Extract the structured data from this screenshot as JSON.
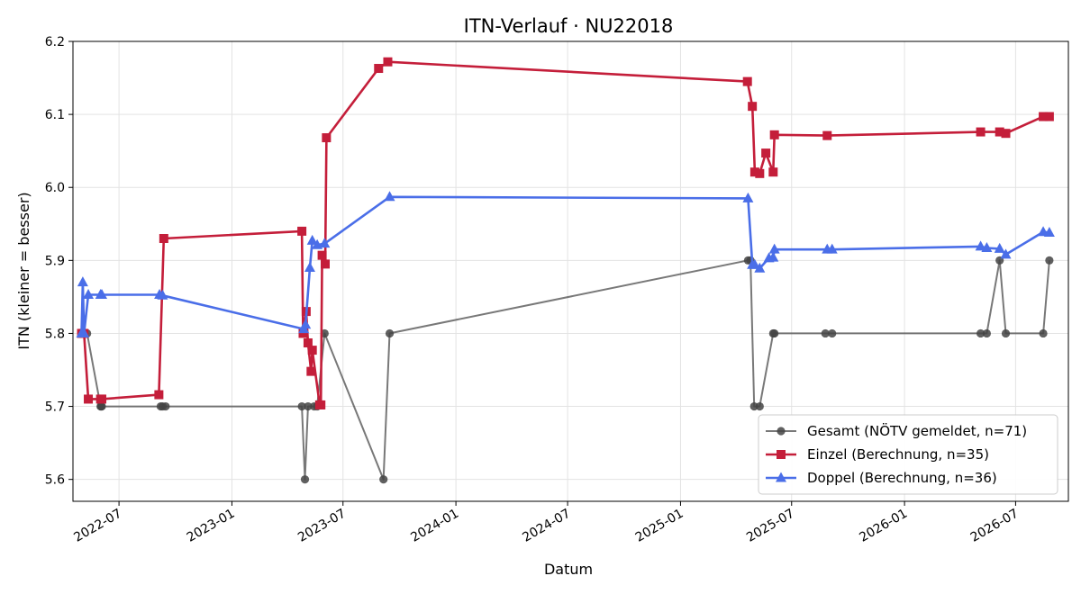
{
  "chart_data": {
    "type": "line",
    "title": "ITN-Verlauf · NU22018",
    "xlabel": "Datum",
    "ylabel": "ITN  (kleiner = besser)",
    "ylim": [
      5.57,
      6.2
    ],
    "xlim": [
      "2022-04-17",
      "2026-09-25"
    ],
    "y_ticks": [
      "5.6",
      "5.7",
      "5.8",
      "5.9",
      "6.0",
      "6.1",
      "6.2"
    ],
    "x_ticks": [
      "2022-07",
      "2023-01",
      "2023-07",
      "2024-01",
      "2024-07",
      "2025-01",
      "2025-07",
      "2026-01",
      "2026-07"
    ],
    "grid": true,
    "legend_position": "bottom-right",
    "series": [
      {
        "name": "Gesamt (NÖTV gemeldet, n=71)",
        "color": "#444444",
        "marker": "circle",
        "points": [
          [
            "2022-05-01",
            5.8
          ],
          [
            "2022-05-05",
            5.8
          ],
          [
            "2022-05-10",
            5.8
          ],
          [
            "2022-06-01",
            5.7
          ],
          [
            "2022-06-02",
            5.7
          ],
          [
            "2022-06-03",
            5.7
          ],
          [
            "2022-09-07",
            5.7
          ],
          [
            "2022-09-10",
            5.7
          ],
          [
            "2022-09-15",
            5.7
          ],
          [
            "2023-04-25",
            5.7
          ],
          [
            "2023-04-30",
            5.6
          ],
          [
            "2023-05-05",
            5.7
          ],
          [
            "2023-05-15",
            5.7
          ],
          [
            "2023-05-20",
            5.7
          ],
          [
            "2023-06-01",
            5.8
          ],
          [
            "2023-09-05",
            5.6
          ],
          [
            "2023-09-15",
            5.8
          ],
          [
            "2025-04-21",
            5.9
          ],
          [
            "2025-04-25",
            5.9
          ],
          [
            "2025-05-01",
            5.7
          ],
          [
            "2025-05-10",
            5.7
          ],
          [
            "2025-06-01",
            5.8
          ],
          [
            "2025-06-03",
            5.8
          ],
          [
            "2025-08-25",
            5.8
          ],
          [
            "2025-09-05",
            5.8
          ],
          [
            "2026-05-05",
            5.8
          ],
          [
            "2026-05-15",
            5.8
          ],
          [
            "2026-06-05",
            5.9
          ],
          [
            "2026-06-15",
            5.8
          ],
          [
            "2026-08-15",
            5.8
          ],
          [
            "2026-08-25",
            5.9
          ]
        ]
      },
      {
        "name": "Einzel (Berechnung, n=35)",
        "color": "#c41e3a",
        "marker": "square",
        "points": [
          [
            "2022-05-01",
            5.8
          ],
          [
            "2022-05-05",
            5.8
          ],
          [
            "2022-05-12",
            5.71
          ],
          [
            "2022-06-01",
            5.71
          ],
          [
            "2022-06-03",
            5.71
          ],
          [
            "2022-09-04",
            5.716
          ],
          [
            "2022-09-12",
            5.93
          ],
          [
            "2023-04-25",
            5.94
          ],
          [
            "2023-04-27",
            5.8
          ],
          [
            "2023-05-02",
            5.83
          ],
          [
            "2023-05-05",
            5.787
          ],
          [
            "2023-05-10",
            5.748
          ],
          [
            "2023-05-12",
            5.777
          ],
          [
            "2023-05-24",
            5.702
          ],
          [
            "2023-05-26",
            5.702
          ],
          [
            "2023-05-28",
            5.907
          ],
          [
            "2023-06-02",
            5.895
          ],
          [
            "2023-06-04",
            6.068
          ],
          [
            "2023-08-28",
            6.163
          ],
          [
            "2023-09-12",
            6.172
          ],
          [
            "2025-04-20",
            6.145
          ],
          [
            "2025-04-28",
            6.111
          ],
          [
            "2025-05-02",
            6.021
          ],
          [
            "2025-05-10",
            6.019
          ],
          [
            "2025-05-20",
            6.047
          ],
          [
            "2025-06-01",
            6.021
          ],
          [
            "2025-06-03",
            6.072
          ],
          [
            "2025-08-28",
            6.071
          ],
          [
            "2026-05-05",
            6.076
          ],
          [
            "2026-06-05",
            6.076
          ],
          [
            "2026-06-15",
            6.074
          ],
          [
            "2026-08-15",
            6.097
          ],
          [
            "2026-08-25",
            6.097
          ]
        ]
      },
      {
        "name": "Doppel (Berechnung, n=36)",
        "color": "#4a6ee8",
        "marker": "triangle",
        "points": [
          [
            "2022-05-01",
            5.8
          ],
          [
            "2022-05-03",
            5.87
          ],
          [
            "2022-05-05",
            5.8
          ],
          [
            "2022-05-12",
            5.853
          ],
          [
            "2022-06-01",
            5.853
          ],
          [
            "2022-06-03",
            5.853
          ],
          [
            "2022-09-05",
            5.853
          ],
          [
            "2022-09-10",
            5.852
          ],
          [
            "2023-04-28",
            5.806
          ],
          [
            "2023-05-01",
            5.812
          ],
          [
            "2023-05-08",
            5.89
          ],
          [
            "2023-05-12",
            5.927
          ],
          [
            "2023-05-20",
            5.921
          ],
          [
            "2023-06-01",
            5.923
          ],
          [
            "2023-09-15",
            5.987
          ],
          [
            "2025-04-21",
            5.985
          ],
          [
            "2025-04-28",
            5.894
          ],
          [
            "2025-05-02",
            5.894
          ],
          [
            "2025-05-10",
            5.889
          ],
          [
            "2025-05-25",
            5.903
          ],
          [
            "2025-06-01",
            5.904
          ],
          [
            "2025-06-03",
            5.915
          ],
          [
            "2025-08-28",
            5.915
          ],
          [
            "2025-09-05",
            5.915
          ],
          [
            "2026-05-05",
            5.919
          ],
          [
            "2026-05-15",
            5.917
          ],
          [
            "2026-06-05",
            5.916
          ],
          [
            "2026-06-15",
            5.908
          ],
          [
            "2026-08-15",
            5.939
          ],
          [
            "2026-08-25",
            5.938
          ]
        ]
      }
    ]
  }
}
